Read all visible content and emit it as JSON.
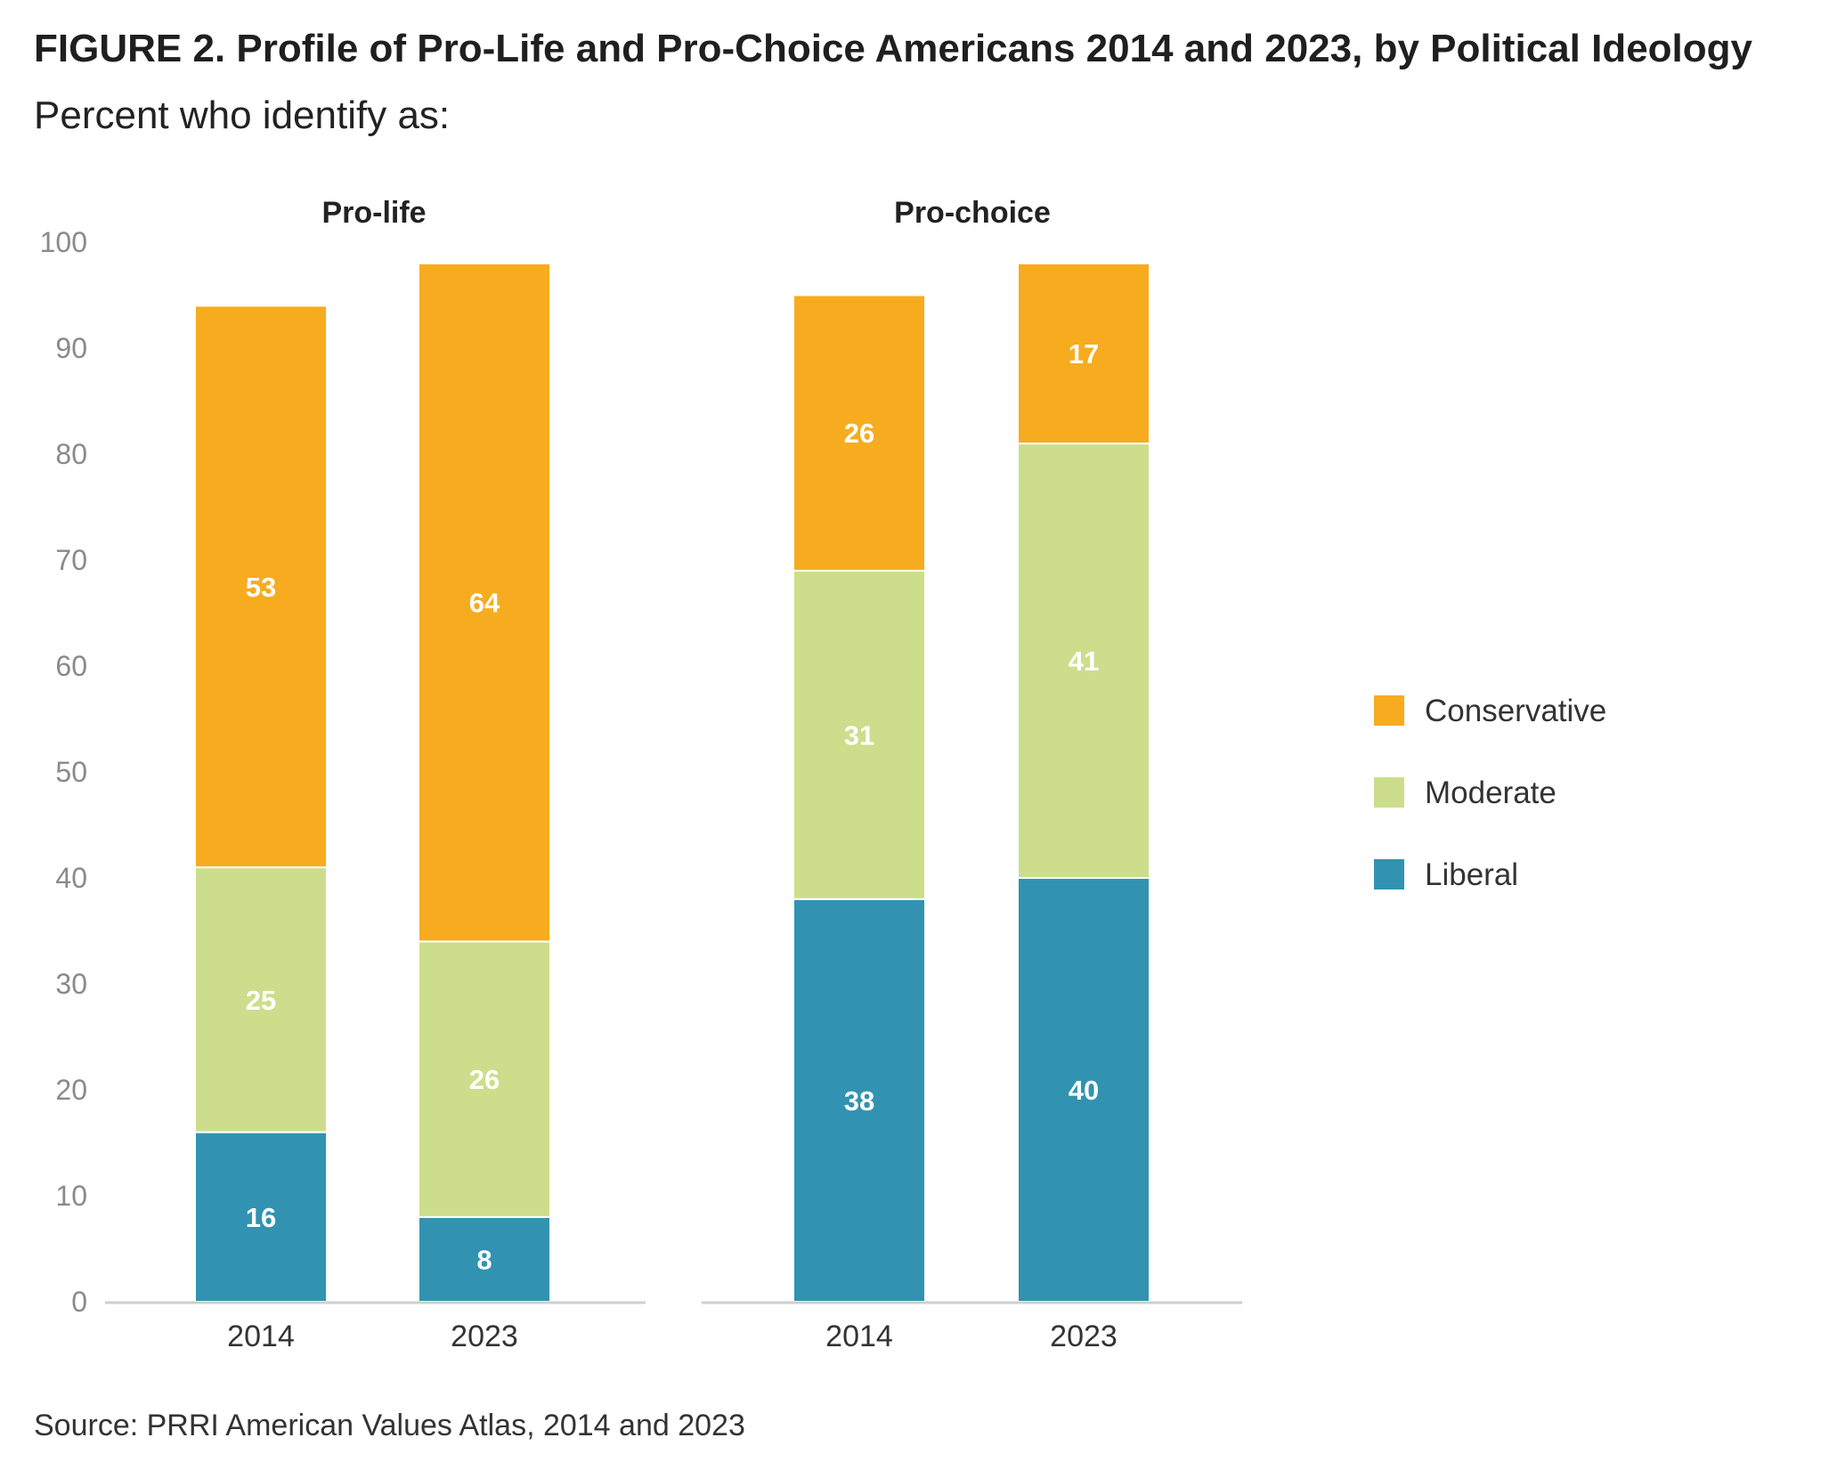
{
  "header": {
    "title": "FIGURE 2. Profile of Pro-Life and Pro-Choice Americans 2014 and 2023, by Political Ideology",
    "subtitle": "Percent who identify as:"
  },
  "footer": {
    "source": "Source: PRRI American Values Atlas, 2014 and 2023"
  },
  "colors": {
    "Conservative": "#F6AC1E",
    "Moderate": "#CCDE8B",
    "Liberal": "#3193B1"
  },
  "chart_data": {
    "type": "bar",
    "stacked": true,
    "ylim": [
      0,
      100
    ],
    "yticks": [
      0,
      10,
      20,
      30,
      40,
      50,
      60,
      70,
      80,
      90,
      100
    ],
    "grid": false,
    "legend_position": "right",
    "legend": [
      "Conservative",
      "Moderate",
      "Liberal"
    ],
    "panels": [
      {
        "title": "Pro-life",
        "categories": [
          "2014",
          "2023"
        ],
        "series": [
          {
            "name": "Liberal",
            "values": [
              16,
              8
            ]
          },
          {
            "name": "Moderate",
            "values": [
              25,
              26
            ]
          },
          {
            "name": "Conservative",
            "values": [
              53,
              64
            ]
          }
        ]
      },
      {
        "title": "Pro-choice",
        "categories": [
          "2014",
          "2023"
        ],
        "series": [
          {
            "name": "Liberal",
            "values": [
              38,
              40
            ]
          },
          {
            "name": "Moderate",
            "values": [
              31,
              41
            ]
          },
          {
            "name": "Conservative",
            "values": [
              26,
              17
            ]
          }
        ]
      }
    ]
  }
}
